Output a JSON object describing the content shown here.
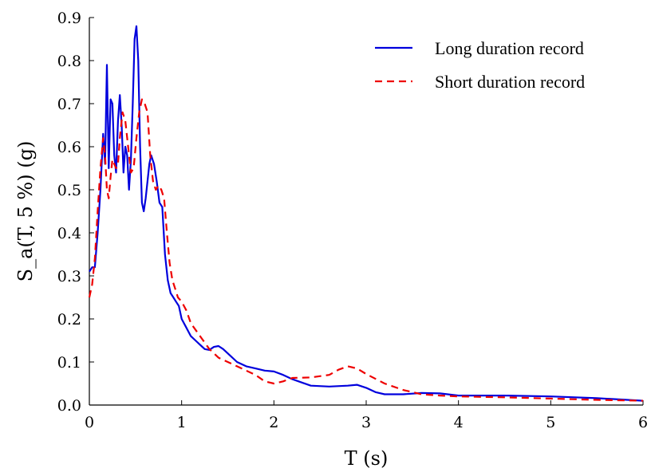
{
  "chart_data": {
    "type": "line",
    "xlabel": "T (s)",
    "ylabel": "S_a(T, 5 %) (g)",
    "xlim": [
      0,
      6
    ],
    "ylim": [
      0,
      0.9
    ],
    "xticks": [
      0,
      1,
      2,
      3,
      4,
      5,
      6
    ],
    "yticks": [
      "0.0",
      "0.1",
      "0.2",
      "0.3",
      "0.4",
      "0.5",
      "0.6",
      "0.7",
      "0.8",
      "0.9"
    ],
    "grid": false,
    "legend_position": "top-right",
    "series": [
      {
        "name": "Long duration record",
        "color": "#0000dd",
        "style": "solid",
        "x": [
          0,
          0.03,
          0.06,
          0.09,
          0.12,
          0.15,
          0.17,
          0.19,
          0.21,
          0.23,
          0.25,
          0.27,
          0.29,
          0.31,
          0.33,
          0.35,
          0.37,
          0.39,
          0.41,
          0.43,
          0.45,
          0.47,
          0.49,
          0.51,
          0.53,
          0.55,
          0.57,
          0.59,
          0.61,
          0.63,
          0.65,
          0.67,
          0.7,
          0.73,
          0.76,
          0.79,
          0.82,
          0.85,
          0.88,
          0.91,
          0.94,
          0.97,
          1.0,
          1.05,
          1.1,
          1.15,
          1.2,
          1.25,
          1.3,
          1.35,
          1.4,
          1.45,
          1.5,
          1.6,
          1.7,
          1.8,
          1.9,
          2.0,
          2.1,
          2.2,
          2.4,
          2.6,
          2.8,
          2.9,
          3.0,
          3.1,
          3.2,
          3.4,
          3.6,
          3.8,
          4.0,
          4.5,
          5.0,
          5.5,
          6.0
        ],
        "y": [
          0.31,
          0.32,
          0.32,
          0.4,
          0.5,
          0.63,
          0.56,
          0.79,
          0.55,
          0.71,
          0.7,
          0.58,
          0.54,
          0.66,
          0.72,
          0.65,
          0.54,
          0.6,
          0.58,
          0.5,
          0.57,
          0.7,
          0.85,
          0.88,
          0.8,
          0.6,
          0.47,
          0.45,
          0.48,
          0.52,
          0.56,
          0.58,
          0.56,
          0.52,
          0.47,
          0.46,
          0.35,
          0.29,
          0.26,
          0.25,
          0.24,
          0.23,
          0.2,
          0.18,
          0.16,
          0.15,
          0.14,
          0.13,
          0.128,
          0.135,
          0.137,
          0.13,
          0.12,
          0.1,
          0.09,
          0.085,
          0.08,
          0.078,
          0.07,
          0.06,
          0.045,
          0.043,
          0.045,
          0.047,
          0.04,
          0.03,
          0.025,
          0.025,
          0.028,
          0.027,
          0.022,
          0.022,
          0.02,
          0.016,
          0.01
        ]
      },
      {
        "name": "Short duration record",
        "color": "#ee0000",
        "style": "dashed",
        "x": [
          0,
          0.03,
          0.06,
          0.09,
          0.12,
          0.15,
          0.17,
          0.19,
          0.21,
          0.23,
          0.25,
          0.27,
          0.29,
          0.31,
          0.33,
          0.36,
          0.39,
          0.42,
          0.45,
          0.48,
          0.51,
          0.54,
          0.57,
          0.6,
          0.63,
          0.66,
          0.69,
          0.72,
          0.75,
          0.78,
          0.81,
          0.84,
          0.87,
          0.9,
          0.93,
          0.96,
          1.0,
          1.05,
          1.1,
          1.2,
          1.3,
          1.4,
          1.5,
          1.6,
          1.7,
          1.8,
          1.9,
          2.0,
          2.1,
          2.2,
          2.4,
          2.6,
          2.7,
          2.8,
          2.9,
          3.0,
          3.2,
          3.4,
          3.6,
          3.8,
          4.0,
          4.5,
          5.0,
          5.5,
          6.0
        ],
        "y": [
          0.25,
          0.28,
          0.34,
          0.45,
          0.55,
          0.62,
          0.58,
          0.5,
          0.48,
          0.53,
          0.57,
          0.56,
          0.55,
          0.56,
          0.62,
          0.68,
          0.66,
          0.6,
          0.54,
          0.55,
          0.62,
          0.68,
          0.71,
          0.7,
          0.68,
          0.58,
          0.52,
          0.5,
          0.51,
          0.5,
          0.48,
          0.4,
          0.33,
          0.29,
          0.27,
          0.25,
          0.24,
          0.22,
          0.19,
          0.16,
          0.13,
          0.11,
          0.1,
          0.09,
          0.08,
          0.07,
          0.055,
          0.05,
          0.055,
          0.063,
          0.064,
          0.07,
          0.082,
          0.09,
          0.085,
          0.072,
          0.05,
          0.035,
          0.025,
          0.022,
          0.02,
          0.018,
          0.015,
          0.012,
          0.01
        ]
      }
    ]
  }
}
